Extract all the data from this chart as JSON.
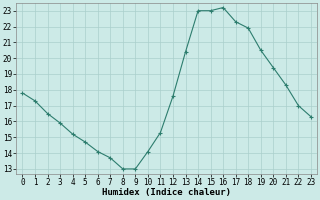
{
  "x": [
    0,
    1,
    2,
    3,
    4,
    5,
    6,
    7,
    8,
    9,
    10,
    11,
    12,
    13,
    14,
    15,
    16,
    17,
    18,
    19,
    20,
    21,
    22,
    23
  ],
  "y": [
    17.8,
    17.3,
    16.5,
    15.9,
    15.2,
    14.7,
    14.1,
    13.7,
    13.0,
    13.0,
    14.1,
    15.3,
    17.6,
    20.4,
    23.0,
    23.0,
    23.2,
    22.3,
    21.9,
    20.5,
    19.4,
    18.3,
    17.0,
    16.3
  ],
  "line_color": "#2d7d6e",
  "marker": "+",
  "marker_size": 3,
  "bg_color": "#cceae7",
  "grid_color": "#aacfcc",
  "xlabel": "Humidex (Indice chaleur)",
  "xlim": [
    -0.5,
    23.5
  ],
  "ylim": [
    12.7,
    23.5
  ],
  "yticks": [
    13,
    14,
    15,
    16,
    17,
    18,
    19,
    20,
    21,
    22,
    23
  ],
  "xticks": [
    0,
    1,
    2,
    3,
    4,
    5,
    6,
    7,
    8,
    9,
    10,
    11,
    12,
    13,
    14,
    15,
    16,
    17,
    18,
    19,
    20,
    21,
    22,
    23
  ],
  "tick_fontsize": 5.5,
  "xlabel_fontsize": 6.5
}
